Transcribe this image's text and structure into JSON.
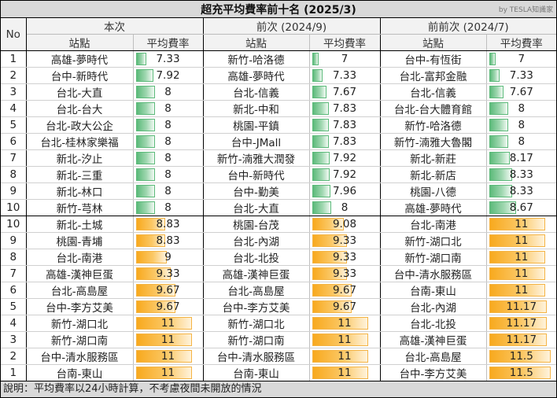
{
  "title": "超充平均費率前十名 (2025/3)",
  "credit": "by TESLA知識家",
  "headers": {
    "no": "No",
    "station": "站點",
    "rate": "平均費率",
    "groups": [
      "本次",
      "前次 (2024/9)",
      "前前次 (2024/7)"
    ]
  },
  "colors": {
    "cheapest_bar": "#5cba7a",
    "expensive_bar": "#f8a91e",
    "header_bg": "#d9d9d9"
  },
  "bar_scale": {
    "min": 6.5,
    "max": 11.6
  },
  "cheapest": {
    "no": [
      "1",
      "2",
      "3",
      "4",
      "5",
      "6",
      "7",
      "8",
      "9",
      "10"
    ],
    "current": [
      {
        "station": "高雄-夢時代",
        "rate": "7.33"
      },
      {
        "station": "台中-新時代",
        "rate": "7.92"
      },
      {
        "station": "台北-大直",
        "rate": "8"
      },
      {
        "station": "台北-台大",
        "rate": "8"
      },
      {
        "station": "台北-政大公企",
        "rate": "8"
      },
      {
        "station": "台北-桂林家樂福",
        "rate": "8"
      },
      {
        "station": "新北-汐止",
        "rate": "8"
      },
      {
        "station": "新北-三重",
        "rate": "8"
      },
      {
        "station": "新北-林口",
        "rate": "8"
      },
      {
        "station": "新竹-芎林",
        "rate": "8"
      }
    ],
    "previous": [
      {
        "station": "新竹-哈洛德",
        "rate": "7"
      },
      {
        "station": "高雄-夢時代",
        "rate": "7.33"
      },
      {
        "station": "台北-信義",
        "rate": "7.67"
      },
      {
        "station": "新北-中和",
        "rate": "7.83"
      },
      {
        "station": "桃園-平鎮",
        "rate": "7.83"
      },
      {
        "station": "台中-JMall",
        "rate": "7.83"
      },
      {
        "station": "新竹-湳雅大潤發",
        "rate": "7.92"
      },
      {
        "station": "台中-新時代",
        "rate": "7.92"
      },
      {
        "station": "台中-勤美",
        "rate": "7.96"
      },
      {
        "station": "台北-大直",
        "rate": "8"
      }
    ],
    "before_previous": [
      {
        "station": "台中-有恆街",
        "rate": "7"
      },
      {
        "station": "台北-富邦金融",
        "rate": "7.33"
      },
      {
        "station": "台北-信義",
        "rate": "7.67"
      },
      {
        "station": "台北-台大體育館",
        "rate": "8"
      },
      {
        "station": "新竹-哈洛德",
        "rate": "8"
      },
      {
        "station": "新竹-湳雅大魯閣",
        "rate": "8"
      },
      {
        "station": "新北-新莊",
        "rate": "8.17"
      },
      {
        "station": "新北-新店",
        "rate": "8.33"
      },
      {
        "station": "桃園-八德",
        "rate": "8.33"
      },
      {
        "station": "高雄-夢時代",
        "rate": "8.67"
      }
    ]
  },
  "expensive": {
    "no": [
      "10",
      "9",
      "8",
      "7",
      "6",
      "5",
      "4",
      "3",
      "2",
      "1"
    ],
    "current": [
      {
        "station": "新北-土城",
        "rate": "8.83"
      },
      {
        "station": "桃園-青埔",
        "rate": "8.83"
      },
      {
        "station": "台北-南港",
        "rate": "9"
      },
      {
        "station": "高雄-漢神巨蛋",
        "rate": "9.33"
      },
      {
        "station": "台北-高島屋",
        "rate": "9.67"
      },
      {
        "station": "台中-李方艾美",
        "rate": "9.67"
      },
      {
        "station": "新竹-湖口北",
        "rate": "11"
      },
      {
        "station": "新竹-湖口南",
        "rate": "11"
      },
      {
        "station": "台中-清水服務區",
        "rate": "11"
      },
      {
        "station": "台南-東山",
        "rate": "11"
      }
    ],
    "previous": [
      {
        "station": "桃園-台茂",
        "rate": "9.08"
      },
      {
        "station": "台北-內湖",
        "rate": "9.33"
      },
      {
        "station": "台北-北投",
        "rate": "9.33"
      },
      {
        "station": "高雄-漢神巨蛋",
        "rate": "9.33"
      },
      {
        "station": "台北-高島屋",
        "rate": "9.67"
      },
      {
        "station": "台中-李方艾美",
        "rate": "9.67"
      },
      {
        "station": "新竹-湖口北",
        "rate": "11"
      },
      {
        "station": "新竹-湖口南",
        "rate": "11"
      },
      {
        "station": "台中-清水服務區",
        "rate": "11"
      },
      {
        "station": "台南-東山",
        "rate": "11"
      }
    ],
    "before_previous": [
      {
        "station": "台北-南港",
        "rate": "11"
      },
      {
        "station": "新竹-湖口北",
        "rate": "11"
      },
      {
        "station": "新竹-湖口南",
        "rate": "11"
      },
      {
        "station": "台中-清水服務區",
        "rate": "11"
      },
      {
        "station": "台南-東山",
        "rate": "11"
      },
      {
        "station": "台北-內湖",
        "rate": "11.17"
      },
      {
        "station": "台北-北投",
        "rate": "11.17"
      },
      {
        "station": "高雄-漢神巨蛋",
        "rate": "11.17"
      },
      {
        "station": "台北-高島屋",
        "rate": "11.5"
      },
      {
        "station": "台中-李方艾美",
        "rate": "11.5"
      }
    ]
  },
  "footer_note": "說明：平均費率以24小時計算，不考慮夜間未開放的情況"
}
